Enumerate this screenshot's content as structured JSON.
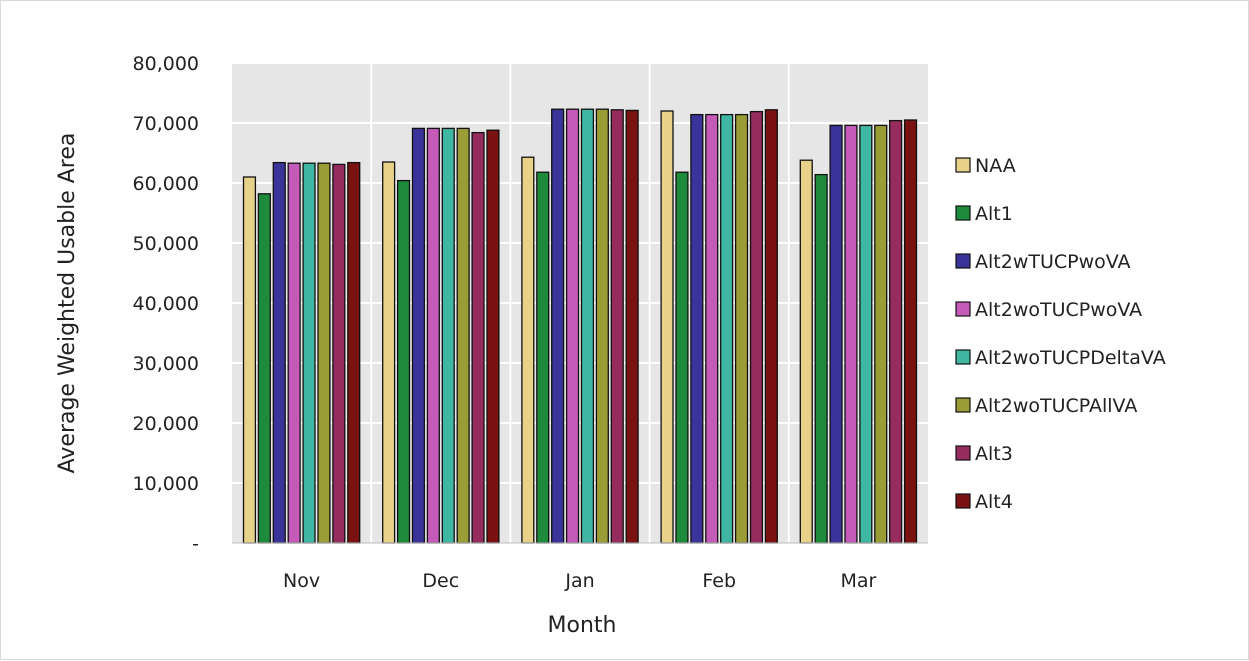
{
  "chart_data": {
    "type": "bar",
    "title": "",
    "xlabel": "Month",
    "ylabel": "Average Weighted Usable Area",
    "categories": [
      "Nov",
      "Dec",
      "Jan",
      "Feb",
      "Mar"
    ],
    "ylim": [
      0,
      80000
    ],
    "yticks": [
      0,
      10000,
      20000,
      30000,
      40000,
      50000,
      60000,
      70000,
      80000
    ],
    "ytick_labels": [
      "-",
      "10,000",
      "20,000",
      "30,000",
      "40,000",
      "50,000",
      "60,000",
      "70,000",
      "80,000"
    ],
    "grid": true,
    "plot_background": "#e6e6e6",
    "legend_position": "right",
    "series": [
      {
        "name": "NAA",
        "color": "#e8d28a",
        "values": [
          61000,
          63500,
          64300,
          72000,
          63800
        ]
      },
      {
        "name": "Alt1",
        "color": "#1e8a3c",
        "values": [
          58200,
          60400,
          61800,
          61800,
          61400
        ]
      },
      {
        "name": "Alt2wTUCPwoVA",
        "color": "#3a3399",
        "values": [
          63400,
          69100,
          72300,
          71400,
          69600
        ]
      },
      {
        "name": "Alt2woTUCPwoVA",
        "color": "#c45bb8",
        "values": [
          63300,
          69100,
          72300,
          71400,
          69600
        ]
      },
      {
        "name": "Alt2woTUCPDeltaVA",
        "color": "#3fb7a3",
        "values": [
          63300,
          69100,
          72300,
          71400,
          69600
        ]
      },
      {
        "name": "Alt2woTUCPAllVA",
        "color": "#9a9c36",
        "values": [
          63300,
          69100,
          72300,
          71400,
          69600
        ]
      },
      {
        "name": "Alt3",
        "color": "#962b5e",
        "values": [
          63100,
          68400,
          72200,
          71900,
          70400
        ]
      },
      {
        "name": "Alt4",
        "color": "#7a1212",
        "values": [
          63400,
          68800,
          72100,
          72200,
          70500
        ]
      }
    ]
  }
}
